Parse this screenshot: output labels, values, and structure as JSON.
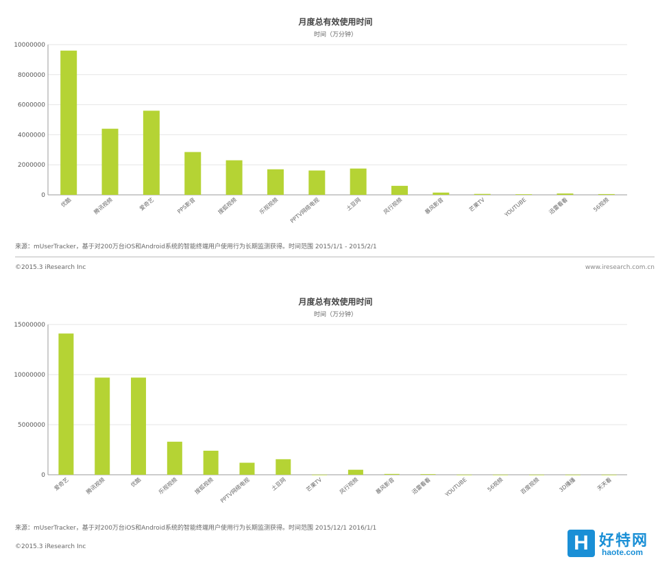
{
  "bar_color": "#b5d334",
  "axis_color": "#999999",
  "grid_color": "#e6e6e6",
  "chart_data": [
    {
      "type": "bar",
      "title": "月度总有效使用时间",
      "subtitle": "时间（万分钟）",
      "ylim": [
        0,
        10000000
      ],
      "yticks": [
        0,
        2000000,
        4000000,
        6000000,
        8000000,
        10000000
      ],
      "ytick_labels": [
        "0",
        "2000000",
        "4000000",
        "6000000",
        "8000000",
        "10000000"
      ],
      "grid": true,
      "categories": [
        "优酷",
        "腾讯视频",
        "爱奇艺",
        "PPS影音",
        "搜狐视频",
        "乐视视频",
        "PPTV网络电视",
        "土豆网",
        "风行视频",
        "暴风影音",
        "芒果TV",
        "YOUTUBE",
        "迅雷看看",
        "56视频"
      ],
      "values": [
        9600000,
        4400000,
        5600000,
        2850000,
        2300000,
        1700000,
        1620000,
        1750000,
        600000,
        150000,
        60000,
        40000,
        90000,
        50000
      ],
      "source": "来源：mUserTracker，基于对200万台iOS和Android系统的智能终端用户使用行为长期监测获得。时间范围  2015/1/1 - 2015/2/1",
      "copyright": "©2015.3 iResearch Inc",
      "site": "www.iresearch.com.cn"
    },
    {
      "type": "bar",
      "title": "月度总有效使用时间",
      "subtitle": "时间（万分钟）",
      "ylim": [
        0,
        15000000
      ],
      "yticks": [
        0,
        5000000,
        10000000,
        15000000
      ],
      "ytick_labels": [
        "0",
        "5000000",
        "10000000",
        "15000000"
      ],
      "grid": true,
      "categories": [
        "爱奇艺",
        "腾讯视频",
        "优酷",
        "乐视视频",
        "搜狐视频",
        "PPTV网络电视",
        "土豆网",
        "芒果TV",
        "风行视频",
        "暴风影音",
        "迅雷看看",
        "YOUTUBE",
        "56视频",
        "百度视频",
        "3D播播",
        "天天看"
      ],
      "values": [
        14100000,
        9700000,
        9700000,
        3300000,
        2400000,
        1200000,
        1550000,
        10000,
        500000,
        80000,
        60000,
        10000,
        10000,
        10000,
        10000,
        10000
      ],
      "source": "来源：mUserTracker，基于对200万台iOS和Android系统的智能终端用户使用行为长期监测获得。时间范围  2015/12/1  2016/1/1",
      "copyright": "©2015.3 iResearch Inc"
    }
  ],
  "watermark": {
    "logo_letter": "H",
    "brand": "好特网",
    "domain": "haote.com"
  }
}
